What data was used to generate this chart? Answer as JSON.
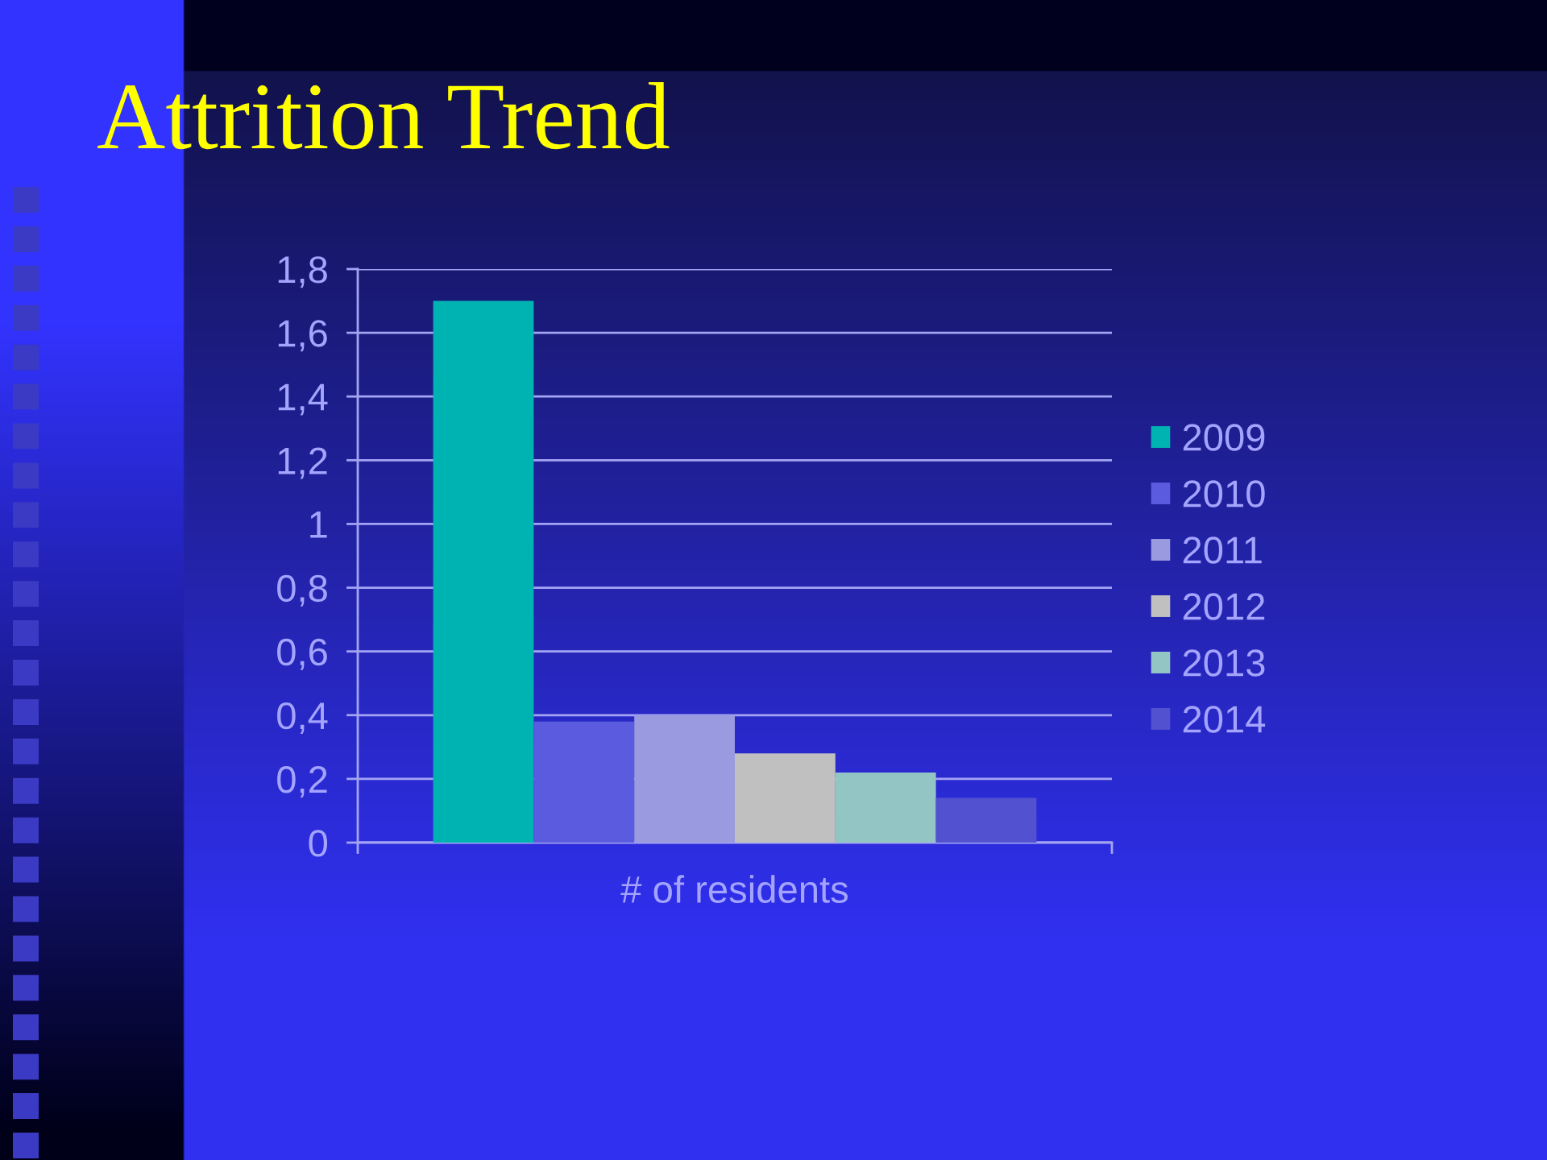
{
  "chart_data": {
    "type": "bar",
    "title": "Attrition Trend",
    "xlabel": "# of residents",
    "categories": [
      null
    ],
    "series": [
      {
        "name": "2009",
        "color": "#00b3b3",
        "values": [
          1.7
        ]
      },
      {
        "name": "2010",
        "color": "#5b5be0",
        "values": [
          0.38
        ]
      },
      {
        "name": "2011",
        "color": "#9a9ae0",
        "values": [
          0.4
        ]
      },
      {
        "name": "2012",
        "color": "#c0c0c0",
        "values": [
          0.28
        ]
      },
      {
        "name": "2013",
        "color": "#93c5c5",
        "values": [
          0.22
        ]
      },
      {
        "name": "2014",
        "color": "#5252d0",
        "values": [
          0.14
        ]
      }
    ],
    "ylim": [
      0,
      1.8
    ],
    "yticks": [
      0,
      {
        "value": 0.2,
        "label": "0,2"
      },
      {
        "value": 0.4,
        "label": "0,4"
      },
      {
        "value": 0.6,
        "label": "0,6"
      },
      {
        "value": 0.8,
        "label": "0,8"
      },
      1,
      {
        "value": 1.2,
        "label": "1,2"
      },
      {
        "value": 1.4,
        "label": "1,4"
      },
      {
        "value": 1.6,
        "label": "1,6"
      },
      {
        "value": 1.8,
        "label": "1,8"
      }
    ],
    "grid": "y",
    "legend": "right"
  }
}
